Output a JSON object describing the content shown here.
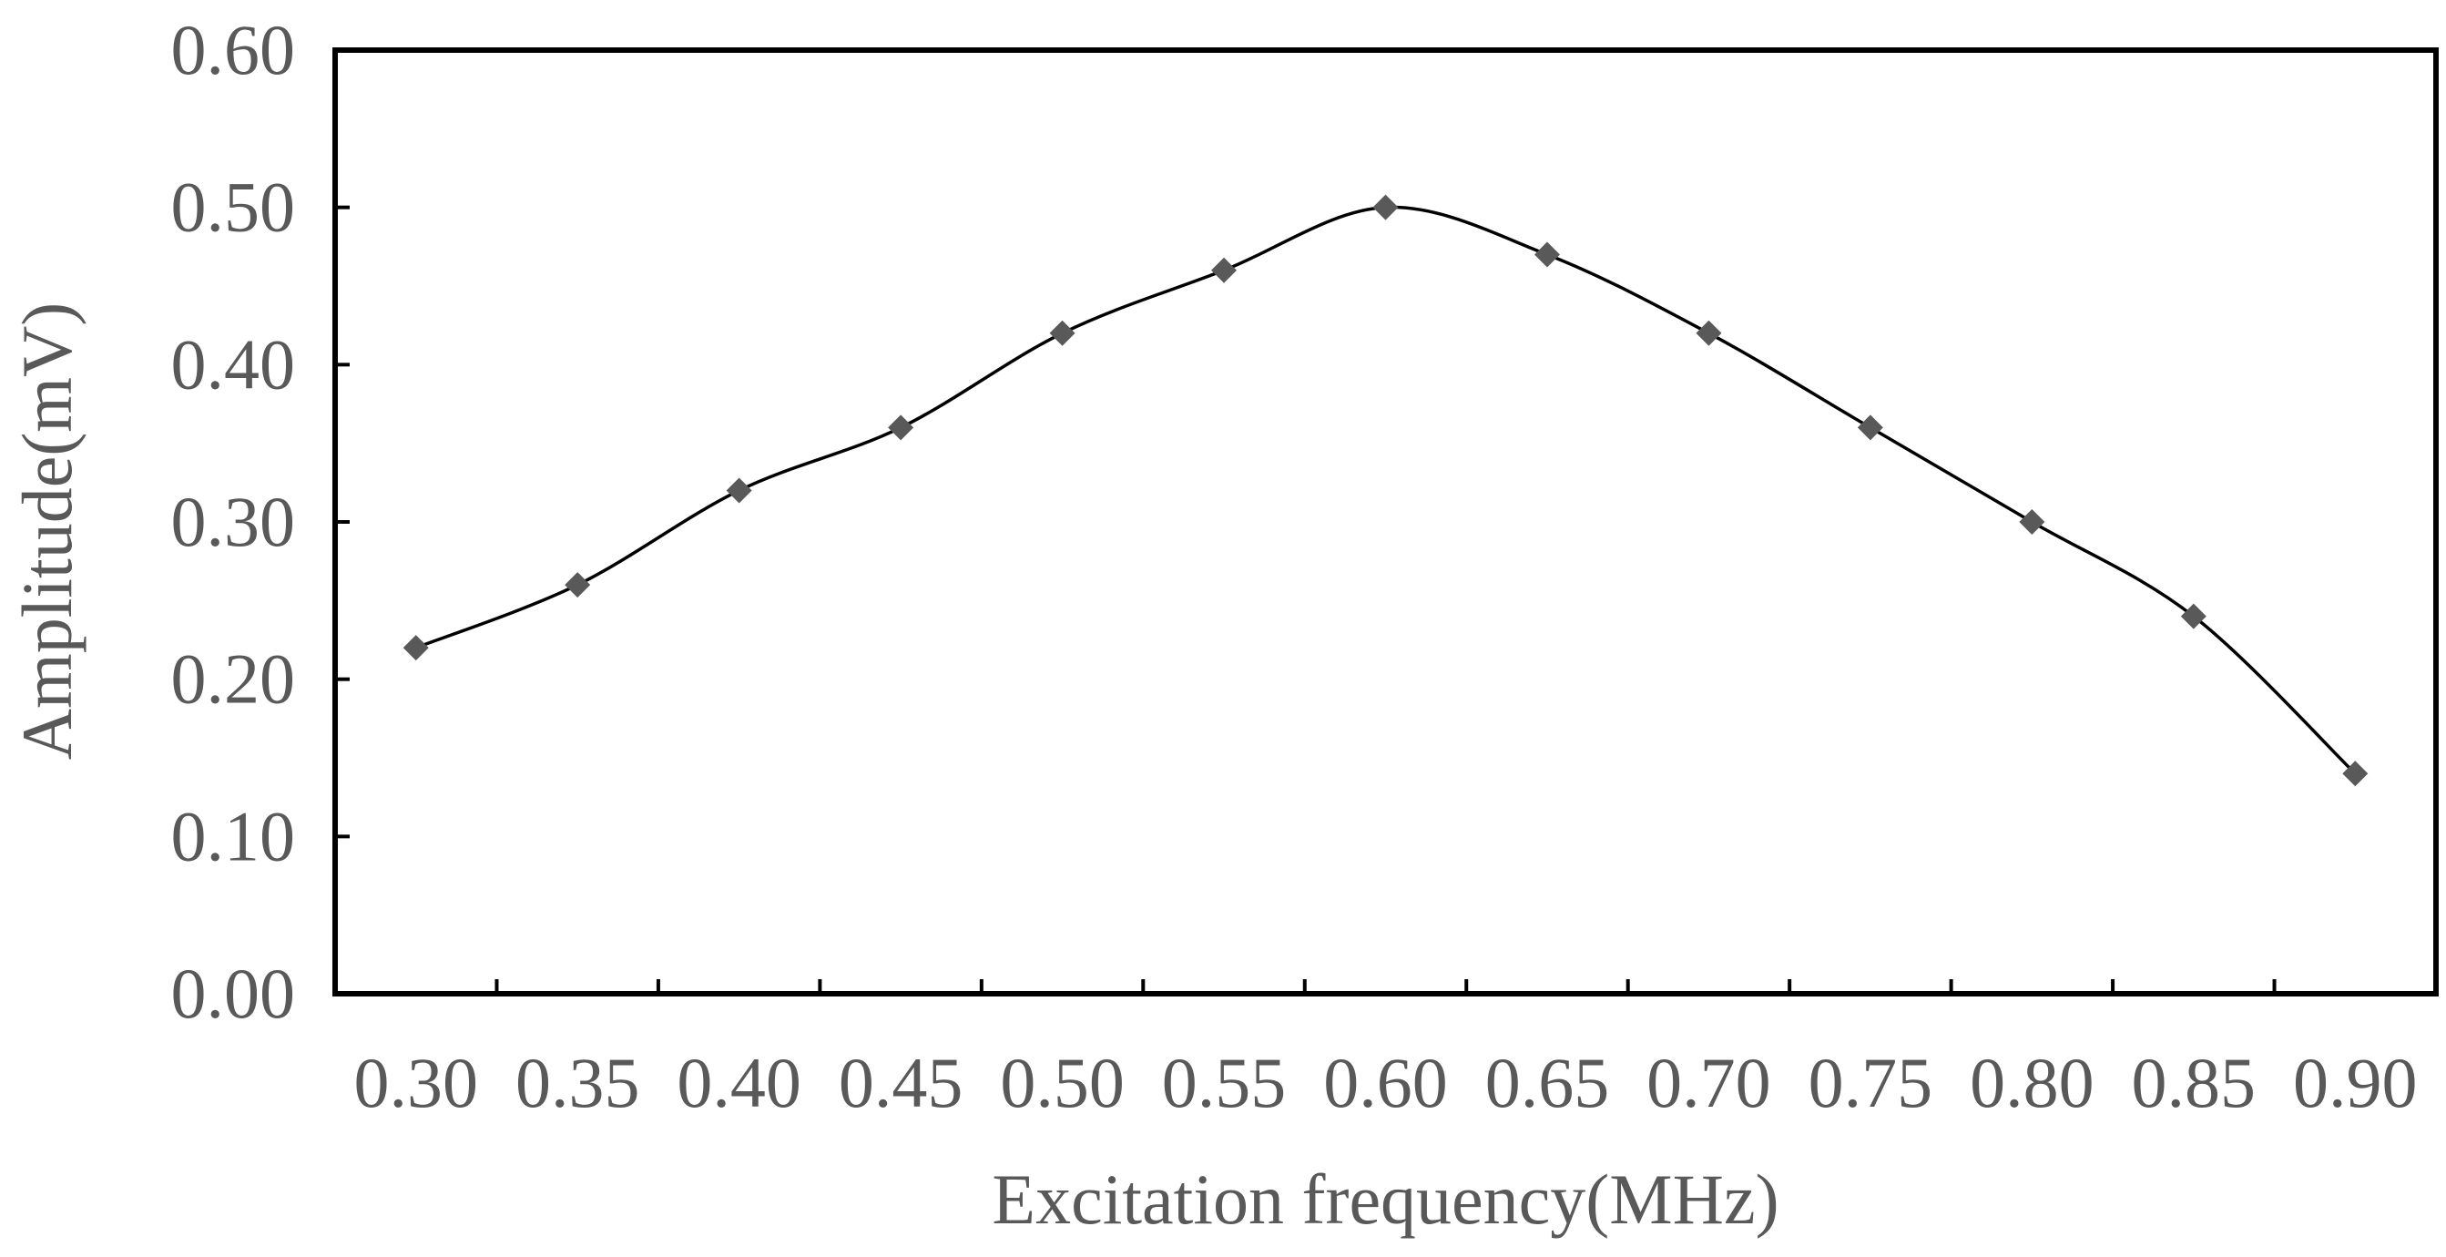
{
  "chart_data": {
    "type": "line",
    "title": "",
    "xlabel": "Excitation frequency(MHz)",
    "ylabel": "Amplitude(mV)",
    "xlim": [
      0.3,
      0.9
    ],
    "ylim": [
      0.0,
      0.6
    ],
    "x_tick_labels": [
      "0.30",
      "0.35",
      "0.40",
      "0.45",
      "0.50",
      "0.55",
      "0.60",
      "0.65",
      "0.70",
      "0.75",
      "0.80",
      "0.85",
      "0.90"
    ],
    "y_tick_labels": [
      "0.00",
      "0.10",
      "0.20",
      "0.30",
      "0.40",
      "0.50",
      "0.60"
    ],
    "y_ticks": [
      0.0,
      0.1,
      0.2,
      0.3,
      0.4,
      0.5,
      0.6
    ],
    "grid": false,
    "legend": "none",
    "smoothed": true,
    "marker": "diamond",
    "colors": {
      "line": "#000000",
      "marker": "#595959",
      "frame": "#000000",
      "text": "#595959"
    },
    "series": [
      {
        "x": [
          0.3,
          0.35,
          0.4,
          0.45,
          0.5,
          0.55,
          0.6,
          0.65,
          0.7,
          0.75,
          0.8,
          0.85,
          0.9
        ],
        "values": [
          0.22,
          0.26,
          0.32,
          0.36,
          0.42,
          0.46,
          0.5,
          0.47,
          0.42,
          0.36,
          0.3,
          0.24,
          0.14
        ]
      }
    ]
  }
}
